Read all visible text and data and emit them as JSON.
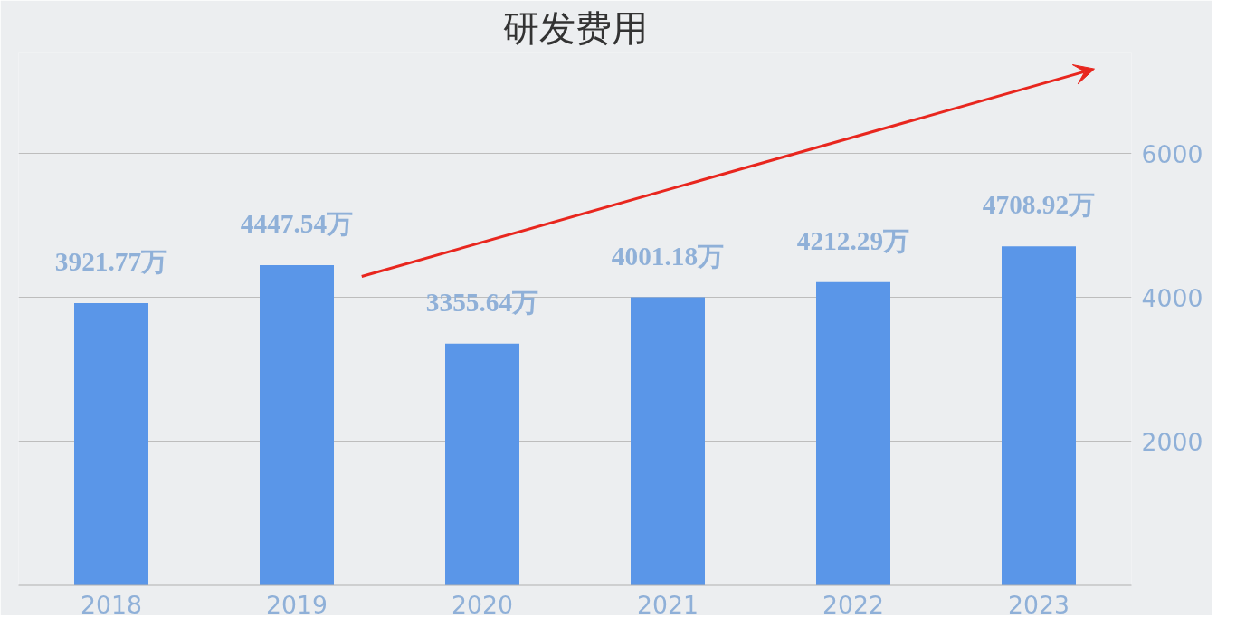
{
  "chart_data": {
    "type": "bar",
    "title": "研发费用",
    "categories": [
      "2018",
      "2019",
      "2020",
      "2021",
      "2022",
      "2023"
    ],
    "values": [
      3921.77,
      4447.54,
      3355.64,
      4001.18,
      4212.29,
      4708.92
    ],
    "value_labels": [
      "3921.77万",
      "4447.54万",
      "3355.64万",
      "4001.18万",
      "4212.29万",
      "4708.92万"
    ],
    "color": "#5a96e8",
    "ylim": [
      0,
      7400
    ],
    "yticks": [
      {
        "value": 0,
        "label": null
      },
      2000,
      4000,
      6000
    ],
    "grid": "y"
  }
}
